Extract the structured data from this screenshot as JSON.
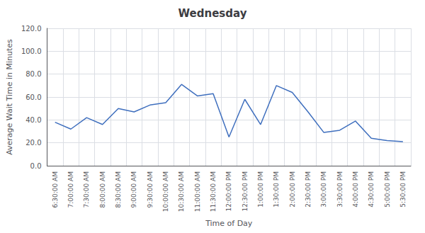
{
  "chart_data": {
    "type": "line",
    "title": "Wednesday",
    "xlabel": "Time of Day",
    "ylabel": "Average Wait Time in Minutes",
    "categories": [
      "6:30:00 AM",
      "7:00:00 AM",
      "7:30:00 AM",
      "8:00:00 AM",
      "8:30:00 AM",
      "9:00:00 AM",
      "9:30:00 AM",
      "10:00:00 AM",
      "10:30:00 AM",
      "11:00:00 AM",
      "11:30:00 AM",
      "12:00:00 PM",
      "12:30:00 PM",
      "1:00:00 PM",
      "1:30:00 PM",
      "2:00:00 PM",
      "2:30:00 PM",
      "3:00:00 PM",
      "3:30:00 PM",
      "4:00:00 PM",
      "4:30:00 PM",
      "5:00:00 PM",
      "5:30:00 PM"
    ],
    "values": [
      38,
      32,
      42,
      36,
      50,
      47,
      53,
      55,
      71,
      61,
      63,
      25,
      58,
      36,
      70,
      64,
      47,
      29,
      31,
      39,
      24,
      22,
      21
    ],
    "color": "#3F6FBE",
    "ylim": [
      0,
      120
    ],
    "yticks": [
      {
        "value": 0,
        "label": "0.0"
      },
      {
        "value": 20,
        "label": "20.0"
      },
      {
        "value": 40,
        "label": "40.0"
      },
      {
        "value": 60,
        "label": "60.0"
      },
      {
        "value": 80,
        "label": "80.0"
      },
      {
        "value": 100,
        "label": "100.0"
      },
      {
        "value": 120,
        "label": "120.0"
      }
    ],
    "grid": true
  }
}
